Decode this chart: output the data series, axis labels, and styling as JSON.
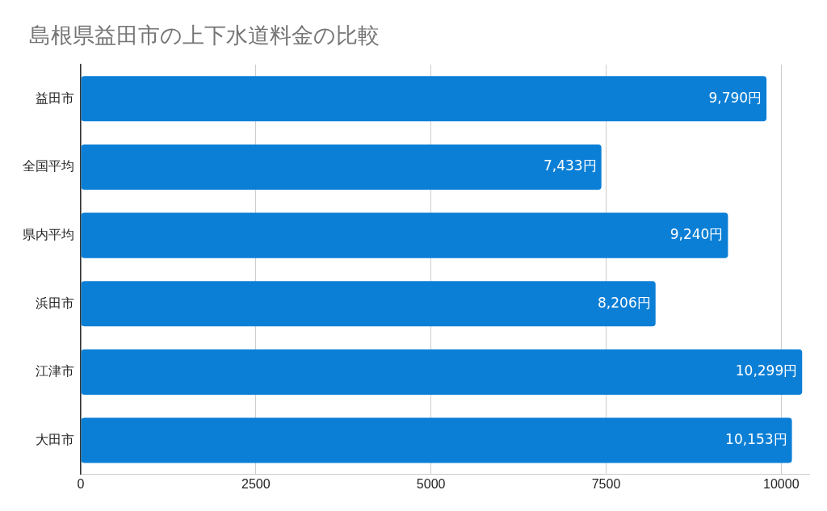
{
  "chart_data": {
    "type": "bar",
    "orientation": "horizontal",
    "title": "島根県益田市の上下水道料金の比較",
    "categories": [
      "益田市",
      "全国平均",
      "県内平均",
      "浜田市",
      "江津市",
      "大田市"
    ],
    "values": [
      9790,
      7433,
      9240,
      8206,
      10299,
      10153
    ],
    "value_labels": [
      "9,790円",
      "7,433円",
      "9,240円",
      "8,206円",
      "10,299円",
      "10,153円"
    ],
    "color": "#0b7fd6",
    "xlim": [
      0,
      10400
    ],
    "xticks": [
      0,
      2500,
      5000,
      7500,
      10000
    ],
    "grid": "x",
    "legend": false
  }
}
